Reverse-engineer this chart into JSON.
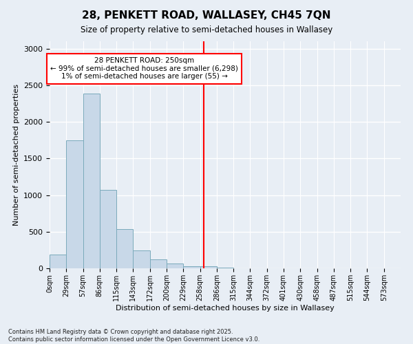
{
  "title": "28, PENKETT ROAD, WALLASEY, CH45 7QN",
  "subtitle": "Size of property relative to semi-detached houses in Wallasey",
  "xlabel": "Distribution of semi-detached houses by size in Wallasey",
  "ylabel": "Number of semi-detached properties",
  "bar_color": "#c8d8e8",
  "bar_edge_color": "#7aaabb",
  "background_color": "#e8eef5",
  "grid_color": "#ffffff",
  "vline_color": "red",
  "annotation_text": "28 PENKETT ROAD: 250sqm\n← 99% of semi-detached houses are smaller (6,298)\n1% of semi-detached houses are larger (55) →",
  "footnote1": "Contains HM Land Registry data © Crown copyright and database right 2025.",
  "footnote2": "Contains public sector information licensed under the Open Government Licence v3.0.",
  "bin_labels": [
    "0sqm",
    "29sqm",
    "57sqm",
    "86sqm",
    "115sqm",
    "143sqm",
    "172sqm",
    "200sqm",
    "229sqm",
    "258sqm",
    "286sqm",
    "315sqm",
    "344sqm",
    "372sqm",
    "401sqm",
    "430sqm",
    "458sqm",
    "487sqm",
    "515sqm",
    "544sqm",
    "573sqm"
  ],
  "bar_values": [
    185,
    1750,
    2390,
    1070,
    540,
    240,
    120,
    65,
    30,
    25,
    10,
    0,
    0,
    0,
    0,
    0,
    0,
    0,
    0,
    0,
    0
  ],
  "ylim": [
    0,
    3100
  ],
  "yticks": [
    0,
    500,
    1000,
    1500,
    2000,
    2500,
    3000
  ],
  "vline_bin_index": 9.0
}
